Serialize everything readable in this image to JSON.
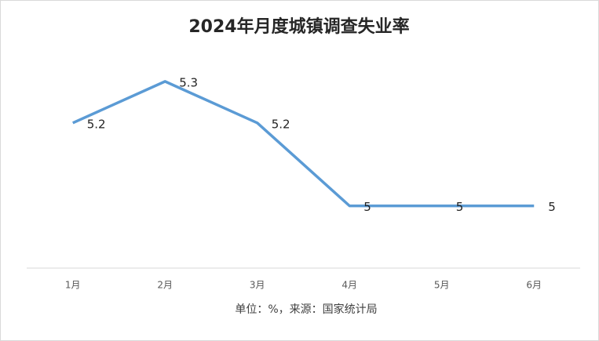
{
  "chart_data": {
    "type": "line",
    "title": "2024年月度城镇调查失业率",
    "categories": [
      "1月",
      "2月",
      "3月",
      "4月",
      "5月",
      "6月"
    ],
    "values": [
      5.2,
      5.3,
      5.2,
      5,
      5,
      5
    ],
    "color": "#5b9bd5",
    "ylim": [
      4.85,
      5.45
    ],
    "x_label": "单位：%，来源：国家统计局"
  }
}
